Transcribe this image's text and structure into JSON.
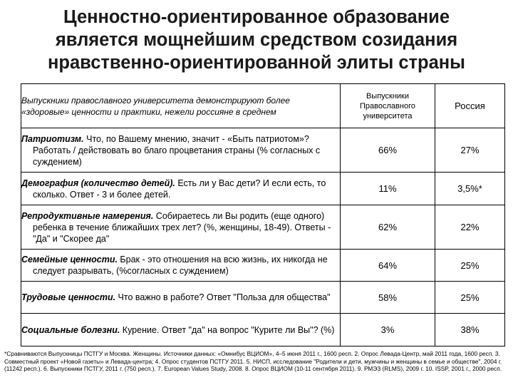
{
  "title": {
    "line1": "Ценностно-ориентированное образование",
    "line2": "является мощнейшим средством созидания",
    "line3": "нравственно-ориентированной элиты страны"
  },
  "table": {
    "header": {
      "description": "Выпускники православного университета демонстрируют более «здоровые» ценности и практики, нежели россияне в среднем",
      "col1": "Выпускники Православного университета",
      "col2": "Россия"
    },
    "rows": [
      {
        "label": "Патриотизм.",
        "text": " Что, по Вашему мнению, значит - «Быть патриотом»? Работать / действовать во благо процветания страны (% согласных с суждением)",
        "v1": "66%",
        "v2": "27%"
      },
      {
        "label": "Демография (количество детей).",
        "text": " Есть ли у Вас дети? И если есть, то сколько. Ответ - 3 и более детей.",
        "v1": "11%",
        "v2": "3,5%*"
      },
      {
        "label": "Репродуктивные намерения.",
        "text": " Собираетесь ли Вы родить (еще одного) ребенка в течение ближайших трех лет? (%, женщины, 18-49). Ответы - \"Да\" и \"Скорее да\"",
        "v1": "62%",
        "v2": "22%"
      },
      {
        "label": "Семейные ценности.",
        "text": " Брак - это отношения на всю жизнь, их никогда не следует разрывать, (%согласных с суждением)",
        "v1": "64%",
        "v2": "25%"
      },
      {
        "label": "Трудовые ценности.",
        "text": " Что важно в работе? Ответ \"Польза для общества\"",
        "v1": "58%",
        "v2": "25%"
      },
      {
        "label": "Социальные болезни.",
        "text": " Курение. Ответ \"да\" на вопрос \"Курите ли Вы\"? (%)",
        "v1": "3%",
        "v2": "38%"
      }
    ]
  },
  "footnote": "*Сравниваются Выпускницы ПСТГУ и Москва. Женщины. Источники данных: «Омнибус ВЦИОМ», 4–5 июня 2011 г., 1600 респ. 2. Опрос Левада-Центр, май 2011 года, 1600 респ. 3. Совместный проект «Новой газеты» и Левада-центра; 4. Опрос студентов ПСТГУ 2011. 5. НИСП, исследование \"Родители и дети, мужчины и женщины в семье и обществе\", 2004 г. (11242 респ.). 6. Выпускники ПСТГУ, 2011 г. (750 респ.). 7. European Values Study, 2008. 8. Опрос ВЦИОМ (10-11 сентября 2011). 9. РМЭЗ (RLMS), 2009 г. 10. ISSP, 2001 г., 2000 респ."
}
